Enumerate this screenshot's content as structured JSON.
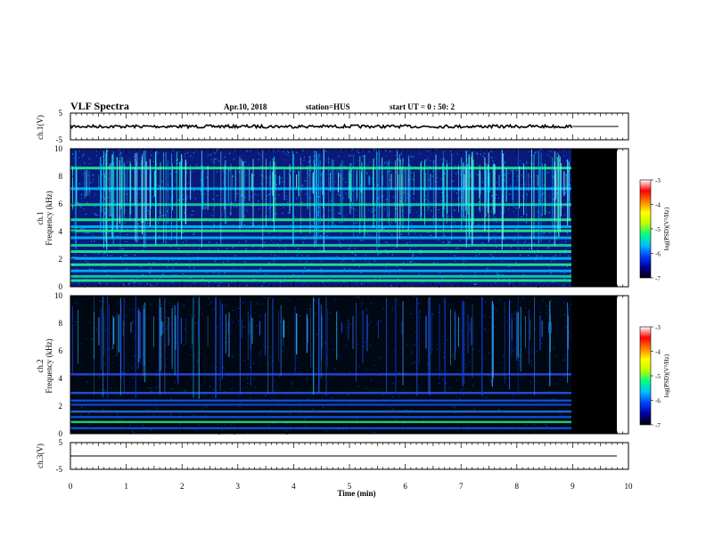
{
  "header": {
    "title": "VLF Spectra",
    "date": "Apr.10, 2018",
    "station": "station=HUS",
    "start": "start UT =  0 : 50: 2"
  },
  "chart_data": [
    {
      "type": "line",
      "name": "ch1-waveform",
      "ylabel": "ch.1(V)",
      "ylim": [
        -5,
        5
      ],
      "yticks": [
        "5",
        "-5"
      ],
      "xlim": [
        0,
        10
      ],
      "trace_level": 0,
      "trace_end": 9.82,
      "noise_until": 9.0
    },
    {
      "type": "heatmap",
      "name": "ch1-spectrogram",
      "ylabel_top": "ch.1",
      "ylabel": "Frequency (kHz)",
      "ylim": [
        0,
        10
      ],
      "yticks": [
        "0",
        "2",
        "4",
        "6",
        "8",
        "10"
      ],
      "xlim": [
        0,
        10
      ],
      "data_end": 9.0,
      "panel_end": 9.82,
      "colorbar": {
        "label": "log(PSD)(V²/Hz)",
        "range": [
          -7,
          -3
        ],
        "ticks": [
          "-3",
          "-4",
          "-5",
          "-6",
          "-7"
        ],
        "colormap": [
          "#000000",
          "#0000a0",
          "#0040ff",
          "#00c0ff",
          "#00ff80",
          "#c0ff00",
          "#ffff00",
          "#ff8000",
          "#ff0000",
          "#ffffff"
        ]
      },
      "bands_khz": [
        0.45,
        0.75,
        1.15,
        1.6,
        2.05,
        2.55,
        3.0,
        3.55,
        4.05,
        4.35,
        4.85,
        5.95,
        7.1,
        8.6
      ]
    },
    {
      "type": "heatmap",
      "name": "ch2-spectrogram",
      "ylabel_top": "ch.2",
      "ylabel": "Frequency (kHz)",
      "ylim": [
        0,
        10
      ],
      "yticks": [
        "0",
        "2",
        "4",
        "6",
        "8",
        "10"
      ],
      "xlim": [
        0,
        10
      ],
      "data_end": 9.0,
      "panel_end": 9.82,
      "colorbar": {
        "label": "log(PSD)(V²/Hz)",
        "range": [
          -7,
          -3
        ],
        "ticks": [
          "-3",
          "-4",
          "-5",
          "-6",
          "-7"
        ],
        "colormap": [
          "#000000",
          "#0000a0",
          "#0040ff",
          "#00c0ff",
          "#00ff80",
          "#c0ff00",
          "#ffff00",
          "#ff8000",
          "#ff0000",
          "#ffffff"
        ]
      },
      "bands_khz": [
        0.4,
        0.85,
        1.2,
        1.6,
        2.1,
        2.4,
        2.95,
        4.3
      ]
    },
    {
      "type": "line",
      "name": "ch3-waveform",
      "ylabel": "ch.3(V)",
      "ylim": [
        -5,
        5
      ],
      "yticks": [
        "5",
        "-5"
      ],
      "xlim": [
        0,
        10
      ],
      "trace_level": 0,
      "trace_end": 9.82,
      "noise_until": 0
    }
  ],
  "xaxis": {
    "label": "Time (min)",
    "ticks": [
      "0",
      "1",
      "2",
      "3",
      "4",
      "5",
      "6",
      "7",
      "8",
      "9",
      "10"
    ]
  }
}
